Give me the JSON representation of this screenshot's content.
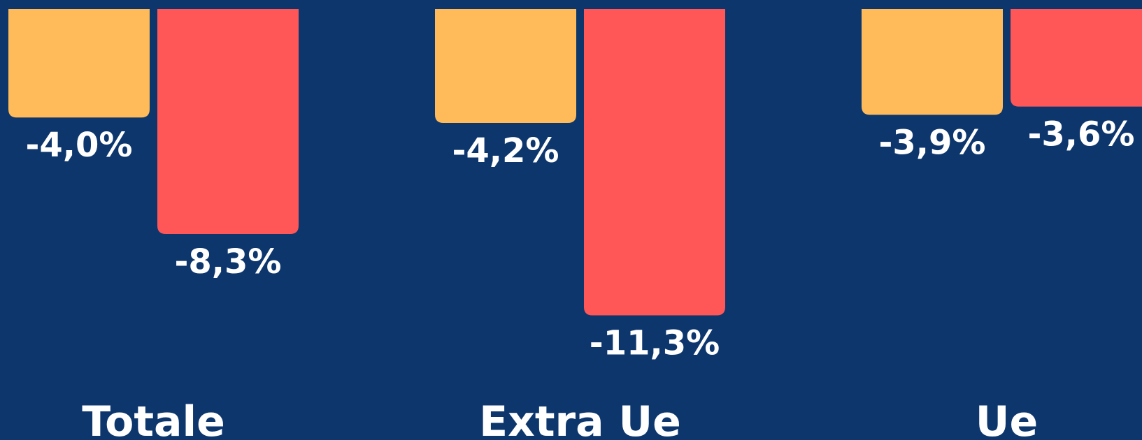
{
  "chart_data": {
    "type": "bar",
    "orientation": "vertical",
    "categories": [
      "Totale",
      "Extra Ue",
      "Ue"
    ],
    "series": [
      {
        "values": [
          -4.0,
          -4.2,
          -3.9
        ],
        "labels": [
          "-4,0%",
          "-4,2%",
          "-3,9%"
        ]
      },
      {
        "values": [
          -8.3,
          -11.3,
          -3.6
        ],
        "labels": [
          "-8,3%",
          "-11,3%",
          "-3,6%"
        ]
      }
    ],
    "colors": [
      "#ffbb5a",
      "#ff5757"
    ],
    "background": "#0d366d",
    "text_color": "#ffffff",
    "title": "",
    "xlabel": "",
    "ylabel": "",
    "ylim": [
      -12.6,
      0
    ],
    "grid": false,
    "legend": "none"
  }
}
